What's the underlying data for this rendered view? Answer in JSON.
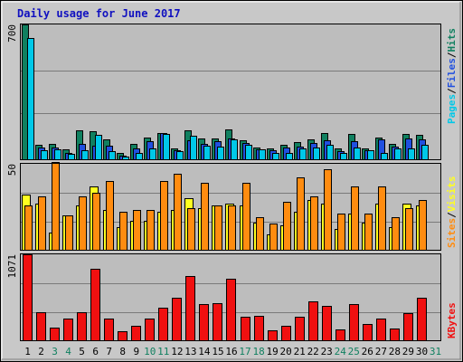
{
  "title": "Daily usage for June 2017",
  "colors": {
    "pages": "#00c8e8",
    "files": "#2050e0",
    "hits": "#108060",
    "visits": "#ffff20",
    "sites": "#ff8c10",
    "kbytes": "#f01010",
    "plot_bg": "#bdbdbd",
    "title": "#1010c0",
    "weekend_day": "#108060",
    "weekday_day": "#000000"
  },
  "legend": {
    "pages": "Pages",
    "files": "Files",
    "hits": "Hits",
    "sites": "Sites",
    "visits": "Visits",
    "kbytes": "KBytes",
    "sep": "/"
  },
  "chart_data": [
    {
      "type": "bar",
      "panel": "hits-files-pages",
      "ylabel_max": "700",
      "ylim": [
        0,
        700
      ],
      "categories": [
        "1",
        "2",
        "3",
        "4",
        "5",
        "6",
        "7",
        "8",
        "9",
        "10",
        "11",
        "12",
        "13",
        "14",
        "15",
        "16",
        "17",
        "18",
        "19",
        "20",
        "21",
        "22",
        "23",
        "24",
        "25",
        "26",
        "27",
        "28",
        "29",
        "30",
        "31"
      ],
      "weekend_days": [
        "3",
        "4",
        "10",
        "11",
        "17",
        "18",
        "24",
        "25",
        "31"
      ],
      "series": [
        {
          "name": "Hits",
          "values": [
            700,
            75,
            80,
            50,
            150,
            145,
            105,
            35,
            80,
            115,
            135,
            55,
            150,
            110,
            110,
            155,
            100,
            60,
            55,
            75,
            90,
            105,
            135,
            55,
            130,
            55,
            115,
            80,
            130,
            125,
            0
          ]
        },
        {
          "name": "Files",
          "values": [
            0,
            60,
            60,
            35,
            80,
            70,
            70,
            20,
            55,
            95,
            135,
            45,
            100,
            80,
            95,
            110,
            85,
            50,
            45,
            60,
            65,
            85,
            100,
            40,
            95,
            45,
            105,
            65,
            110,
            105,
            0
          ]
        },
        {
          "name": "Pages",
          "values": [
            630,
            45,
            50,
            30,
            45,
            125,
            40,
            15,
            35,
            55,
            130,
            40,
            120,
            70,
            65,
            105,
            75,
            50,
            35,
            35,
            55,
            60,
            75,
            35,
            60,
            45,
            35,
            55,
            55,
            75,
            0
          ]
        }
      ]
    },
    {
      "type": "bar",
      "panel": "visits-sites",
      "ylabel_max": "50",
      "ylim": [
        0,
        50
      ],
      "categories": [
        "1",
        "2",
        "3",
        "4",
        "5",
        "6",
        "7",
        "8",
        "9",
        "10",
        "11",
        "12",
        "13",
        "14",
        "15",
        "16",
        "17",
        "18",
        "19",
        "20",
        "21",
        "22",
        "23",
        "24",
        "25",
        "26",
        "27",
        "28",
        "29",
        "30",
        "31"
      ],
      "series": [
        {
          "name": "Visits",
          "values": [
            32,
            27,
            10,
            20,
            26,
            37,
            23,
            13,
            17,
            17,
            22,
            23,
            30,
            24,
            26,
            27,
            26,
            16,
            9,
            14,
            22,
            29,
            27,
            12,
            21,
            16,
            27,
            13,
            27,
            26,
            0
          ]
        },
        {
          "name": "Sites",
          "values": [
            26,
            31,
            51,
            20,
            31,
            33,
            40,
            22,
            23,
            23,
            40,
            44,
            24,
            39,
            26,
            26,
            39,
            19,
            15,
            28,
            42,
            31,
            47,
            21,
            37,
            21,
            37,
            19,
            24,
            29,
            0
          ]
        }
      ]
    },
    {
      "type": "bar",
      "panel": "kbytes",
      "ylabel_max": "1071",
      "ylim": [
        0,
        1071
      ],
      "categories": [
        "1",
        "2",
        "3",
        "4",
        "5",
        "6",
        "7",
        "8",
        "9",
        "10",
        "11",
        "12",
        "13",
        "14",
        "15",
        "16",
        "17",
        "18",
        "19",
        "20",
        "21",
        "22",
        "23",
        "24",
        "25",
        "26",
        "27",
        "28",
        "29",
        "30",
        "31"
      ],
      "series": [
        {
          "name": "KBytes",
          "values": [
            1071,
            345,
            160,
            270,
            355,
            890,
            270,
            115,
            180,
            270,
            405,
            525,
            800,
            455,
            465,
            770,
            295,
            305,
            120,
            180,
            295,
            485,
            430,
            135,
            450,
            200,
            265,
            145,
            335,
            525,
            0
          ]
        }
      ]
    }
  ]
}
